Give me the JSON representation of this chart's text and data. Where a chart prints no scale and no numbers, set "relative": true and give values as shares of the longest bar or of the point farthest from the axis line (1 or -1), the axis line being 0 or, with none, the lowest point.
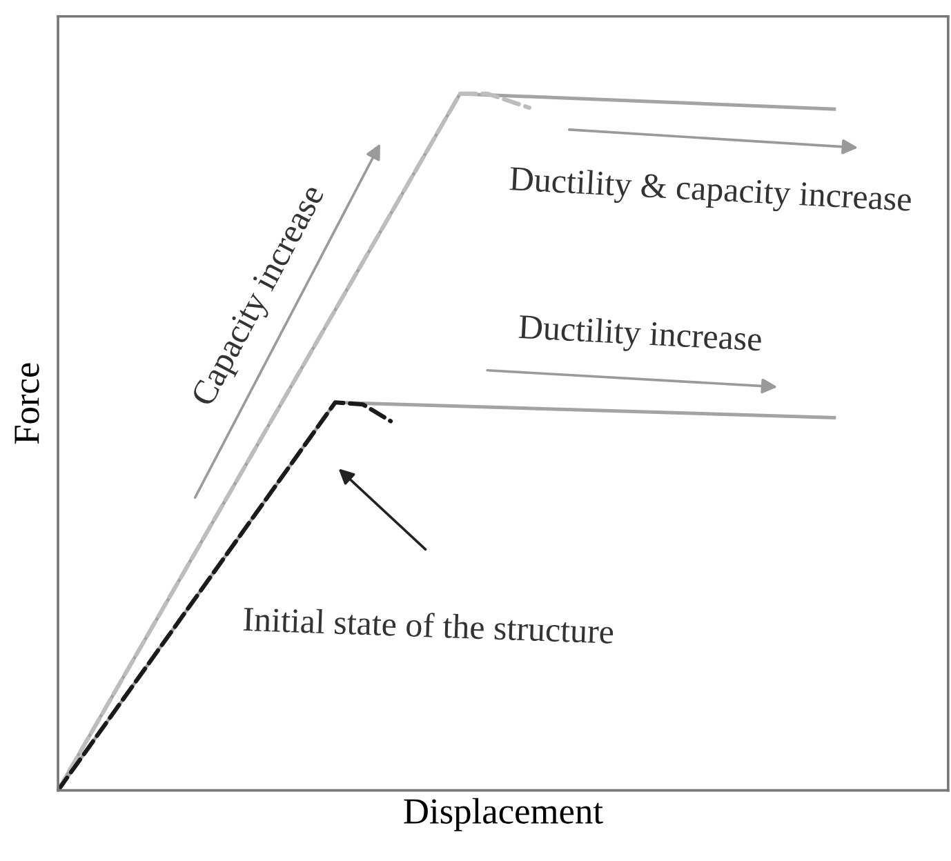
{
  "chart_data": {
    "type": "line",
    "relative": true,
    "xlabel": "Displacement",
    "ylabel": "Force",
    "annotations": [
      "Capacity increase",
      "Ductility & capacity increase",
      "Ductility increase",
      "Initial state of the structure"
    ],
    "categories": [
      null,
      null,
      null,
      null,
      null,
      null,
      null,
      null,
      null,
      null,
      null,
      null,
      null,
      null,
      null,
      null,
      null,
      null,
      null,
      null,
      null,
      null,
      null,
      null,
      null,
      null,
      null,
      null,
      null,
      null,
      null,
      null,
      null,
      null,
      null,
      null,
      null,
      null,
      null,
      null,
      null,
      null,
      null,
      null,
      null,
      null,
      null,
      null,
      null,
      null,
      null,
      null,
      null,
      null,
      null,
      null,
      null
    ],
    "series": [
      {
        "color": "#a3a3a3",
        "line_style": "solid",
        "values": [
          0,
          null,
          null,
          null,
          null,
          null,
          null,
          null,
          null,
          null,
          null,
          null,
          null,
          null,
          null,
          null,
          null,
          null,
          null,
          null,
          null,
          null,
          null,
          null,
          null,
          null,
          null,
          null,
          null,
          1.0,
          null,
          null,
          null,
          null,
          null,
          null,
          null,
          null,
          null,
          null,
          null,
          null,
          null,
          null,
          null,
          null,
          null,
          null,
          null,
          null,
          null,
          null,
          null,
          null,
          null,
          null,
          0.978
        ]
      },
      {
        "color": "#bdbdbd",
        "line_style": "dashed",
        "values": [
          0,
          null,
          null,
          null,
          null,
          null,
          null,
          null,
          null,
          null,
          null,
          null,
          null,
          null,
          null,
          null,
          null,
          null,
          null,
          null,
          null,
          null,
          null,
          null,
          null,
          null,
          null,
          null,
          null,
          1.0,
          null,
          1.0,
          null,
          null,
          0.98,
          null,
          null,
          null,
          null,
          null,
          null,
          null,
          null,
          null,
          null,
          null,
          null,
          null,
          null,
          null,
          null,
          null,
          null,
          null,
          null,
          null,
          null
        ]
      },
      {
        "color": "#a3a3a3",
        "line_style": "solid",
        "values": [
          0,
          null,
          null,
          null,
          null,
          null,
          null,
          null,
          null,
          null,
          null,
          null,
          null,
          null,
          null,
          null,
          null,
          null,
          null,
          null,
          0.557,
          null,
          null,
          null,
          null,
          null,
          null,
          null,
          null,
          null,
          null,
          null,
          null,
          null,
          null,
          null,
          null,
          null,
          null,
          null,
          null,
          null,
          null,
          null,
          null,
          null,
          null,
          null,
          null,
          null,
          null,
          null,
          null,
          null,
          null,
          null,
          0.535
        ]
      },
      {
        "color": "#1a1a1a",
        "line_style": "dashed",
        "values": [
          0,
          null,
          null,
          null,
          null,
          null,
          null,
          null,
          null,
          null,
          null,
          null,
          null,
          null,
          null,
          null,
          null,
          null,
          null,
          null,
          0.557,
          null,
          0.554,
          null,
          0.53,
          null,
          null,
          null,
          null,
          null,
          null,
          null,
          null,
          null,
          null,
          null,
          null,
          null,
          null,
          null,
          null,
          null,
          null,
          null,
          null,
          null,
          null,
          null,
          null,
          null,
          null,
          null,
          null,
          null,
          null,
          null,
          null
        ]
      }
    ]
  }
}
